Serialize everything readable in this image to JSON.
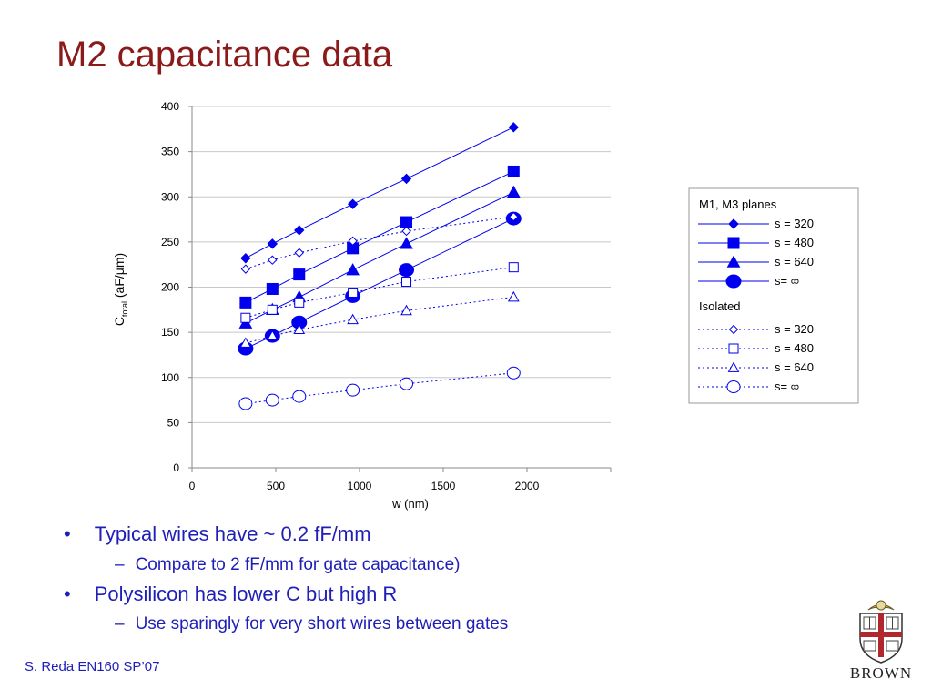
{
  "slide": {
    "title": "M2 capacitance data"
  },
  "bullets": [
    {
      "text": "Typical wires have ~ 0.2 fF/mm",
      "marker": "•",
      "level": 1
    },
    {
      "text": "Compare to 2 fF/mm for gate capacitance)",
      "marker": "–",
      "level": 2
    },
    {
      "text": "Polysilicon has lower C but high R",
      "marker": "•",
      "level": 1
    },
    {
      "text": "Use sparingly for very short wires between gates",
      "marker": "–",
      "level": 2
    }
  ],
  "footer": {
    "text": "S. Reda EN160 SP’07"
  },
  "logo": {
    "text": "BROWN",
    "icon": "brown-university-shield-icon"
  },
  "colors": {
    "title": "#8b1a1a",
    "text": "#1f1fb8",
    "series": "#0000ee"
  },
  "chart_data": {
    "type": "line",
    "xlabel": "w (nm)",
    "ylabel_main": "C",
    "ylabel_sub": "total",
    "ylabel_unit": " (aF/μm)",
    "xlim": [
      0,
      2500
    ],
    "ylim": [
      0,
      400
    ],
    "xticks": [
      "0",
      "500",
      "1000",
      "1500",
      "2000"
    ],
    "yticks": [
      "0",
      "50",
      "100",
      "150",
      "200",
      "250",
      "300",
      "350",
      "400"
    ],
    "grid": "horizontal",
    "legend_placement": "right",
    "legend_groups": [
      "M1, M3 planes",
      "Isolated"
    ],
    "x": [
      320,
      480,
      640,
      960,
      1280,
      1920
    ],
    "series": [
      {
        "name": "s = 320",
        "group": 0,
        "marker": "diamond",
        "filled": true,
        "dashed": false,
        "values": [
          232,
          248,
          263,
          292,
          320,
          377
        ]
      },
      {
        "name": "s = 480",
        "group": 0,
        "marker": "square",
        "filled": true,
        "dashed": false,
        "values": [
          183,
          198,
          214,
          243,
          272,
          328
        ]
      },
      {
        "name": "s = 640",
        "group": 0,
        "marker": "triangle",
        "filled": true,
        "dashed": false,
        "values": [
          160,
          175,
          189,
          219,
          248,
          305
        ]
      },
      {
        "name": "s= ∞",
        "group": 0,
        "marker": "circle",
        "filled": true,
        "dashed": false,
        "values": [
          132,
          146,
          161,
          190,
          219,
          276
        ]
      },
      {
        "name": "s = 320",
        "group": 1,
        "marker": "diamond",
        "filled": false,
        "dashed": true,
        "values": [
          220,
          230,
          238,
          251,
          262,
          278
        ]
      },
      {
        "name": "s = 480",
        "group": 1,
        "marker": "square",
        "filled": false,
        "dashed": true,
        "values": [
          166,
          175,
          183,
          194,
          206,
          222
        ]
      },
      {
        "name": "s = 640",
        "group": 1,
        "marker": "triangle",
        "filled": false,
        "dashed": true,
        "values": [
          138,
          146,
          153,
          164,
          174,
          189
        ]
      },
      {
        "name": "s= ∞",
        "group": 1,
        "marker": "circle",
        "filled": false,
        "dashed": true,
        "values": [
          71,
          75,
          79,
          86,
          93,
          105
        ]
      }
    ]
  }
}
